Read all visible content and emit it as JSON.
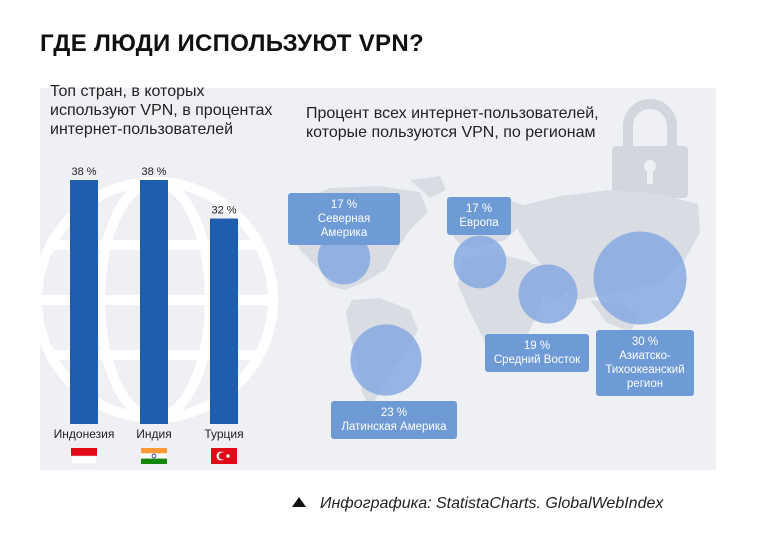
{
  "title": "ГДЕ ЛЮДИ ИСПОЛЬЗУЮТ VPN?",
  "left_subtitle": "Топ стран, в которых используют VPN, в процентах интернет-пользователей",
  "right_subtitle": "Процент всех интернет-пользователей, которые пользуются VPN, по регионам",
  "source": "Инфографика: StatistaCharts. GlobalWebIndex",
  "colors": {
    "bar": "#1f5eae",
    "bubble": "#7fa6e0",
    "callout": "#6e9ad6",
    "map": "#d9dde3",
    "panel": "#eef0f3"
  },
  "chart_data": [
    {
      "type": "bar",
      "categories": [
        "Индонезия",
        "Индия",
        "Турция"
      ],
      "values": [
        38,
        38,
        32
      ],
      "value_labels": [
        "38 %",
        "38 %",
        "32 %"
      ],
      "flags": [
        "indonesia-flag",
        "india-flag",
        "turkey-flag"
      ],
      "ylim": [
        0,
        38
      ]
    },
    {
      "type": "scatter",
      "series": [
        {
          "region": "Северная Америка",
          "value": 17,
          "label": "17 %"
        },
        {
          "region": "Европа",
          "value": 17,
          "label": "17 %"
        },
        {
          "region": "Средний Восток",
          "value": 19,
          "label": "19 %"
        },
        {
          "region": "Азиатско-Тихоокеанский регион",
          "value": 30,
          "label": "30 %"
        },
        {
          "region": "Латинская Америка",
          "value": 23,
          "label": "23 %"
        }
      ]
    }
  ]
}
